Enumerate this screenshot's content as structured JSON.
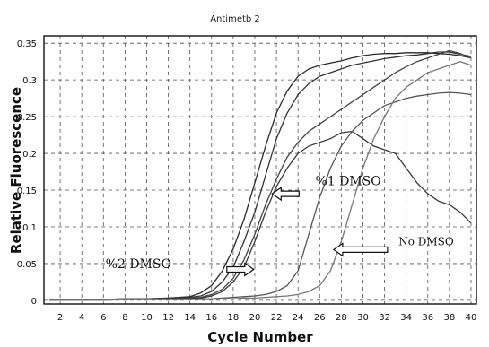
{
  "chart_data": {
    "type": "line",
    "title": "Antimetb 2",
    "xlabel": "Cycle Number",
    "ylabel": "Relative Fluorescence",
    "xlim": [
      0.5,
      40.5
    ],
    "ylim": [
      -0.005,
      0.36
    ],
    "x_ticks": [
      2,
      4,
      6,
      8,
      10,
      12,
      14,
      16,
      18,
      20,
      22,
      24,
      26,
      28,
      30,
      32,
      34,
      36,
      38,
      40
    ],
    "y_ticks": [
      0,
      0.05,
      0.1,
      0.15,
      0.2,
      0.25,
      0.3,
      0.35
    ],
    "y_tick_labels": [
      "0",
      "0.05",
      "0.1",
      "0.15",
      "0.2",
      "0.25",
      "0.3",
      "0.35"
    ],
    "grid": true,
    "x": [
      1,
      2,
      4,
      6,
      8,
      10,
      12,
      14,
      15,
      16,
      17,
      18,
      19,
      20,
      21,
      22,
      23,
      24,
      25,
      26,
      27,
      28,
      29,
      30,
      31,
      32,
      33,
      34,
      35,
      36,
      37,
      38,
      39,
      40
    ],
    "series": [
      {
        "color": "#2a2a2a",
        "values": [
          0.0,
          0.001,
          0.001,
          0.001,
          0.002,
          0.002,
          0.003,
          0.005,
          0.01,
          0.02,
          0.04,
          0.07,
          0.11,
          0.16,
          0.21,
          0.255,
          0.285,
          0.305,
          0.315,
          0.32,
          0.323,
          0.326,
          0.33,
          0.333,
          0.335,
          0.336,
          0.336,
          0.337,
          0.337,
          0.337,
          0.336,
          0.335,
          0.333,
          0.33
        ]
      },
      {
        "color": "#333333",
        "values": [
          0.0,
          0.001,
          0.001,
          0.001,
          0.002,
          0.002,
          0.003,
          0.004,
          0.006,
          0.012,
          0.025,
          0.045,
          0.08,
          0.12,
          0.17,
          0.22,
          0.255,
          0.28,
          0.295,
          0.305,
          0.31,
          0.315,
          0.32,
          0.323,
          0.326,
          0.329,
          0.331,
          0.333,
          0.334,
          0.336,
          0.338,
          0.338,
          0.335,
          0.332
        ]
      },
      {
        "color": "#444444",
        "values": [
          0.0,
          0.001,
          0.001,
          0.001,
          0.002,
          0.002,
          0.002,
          0.003,
          0.004,
          0.008,
          0.015,
          0.03,
          0.055,
          0.09,
          0.13,
          0.165,
          0.195,
          0.215,
          0.23,
          0.24,
          0.25,
          0.26,
          0.27,
          0.28,
          0.29,
          0.3,
          0.31,
          0.318,
          0.325,
          0.33,
          0.335,
          0.34,
          0.336,
          0.33
        ]
      },
      {
        "color": "#3a3a3a",
        "values": [
          0.0,
          0.001,
          0.001,
          0.001,
          0.001,
          0.002,
          0.002,
          0.002,
          0.003,
          0.006,
          0.012,
          0.025,
          0.045,
          0.08,
          0.12,
          0.155,
          0.18,
          0.2,
          0.21,
          0.215,
          0.22,
          0.228,
          0.23,
          0.22,
          0.21,
          0.205,
          0.2,
          0.18,
          0.16,
          0.145,
          0.135,
          0.13,
          0.12,
          0.105
        ]
      },
      {
        "color": "#555555",
        "values": [
          0.0,
          0.001,
          0.001,
          0.001,
          0.001,
          0.001,
          0.001,
          0.001,
          0.002,
          0.002,
          0.003,
          0.004,
          0.005,
          0.006,
          0.008,
          0.012,
          0.02,
          0.04,
          0.09,
          0.14,
          0.18,
          0.21,
          0.23,
          0.245,
          0.255,
          0.265,
          0.27,
          0.275,
          0.278,
          0.28,
          0.282,
          0.283,
          0.282,
          0.28
        ]
      },
      {
        "color": "#777777",
        "values": [
          0.0,
          0.0,
          0.0,
          0.0,
          0.001,
          0.001,
          0.001,
          0.001,
          0.001,
          0.001,
          0.002,
          0.002,
          0.003,
          0.003,
          0.004,
          0.005,
          0.006,
          0.008,
          0.012,
          0.02,
          0.04,
          0.08,
          0.13,
          0.18,
          0.22,
          0.25,
          0.275,
          0.29,
          0.3,
          0.31,
          0.315,
          0.32,
          0.325,
          0.32
        ]
      }
    ],
    "annotations": [
      {
        "text": "%1 DMSO",
        "x": 25.6,
        "y": 0.157,
        "arrow_tip": [
          21.6,
          0.145
        ]
      },
      {
        "text": "%2 DMSO",
        "x": 6.2,
        "y": 0.044,
        "arrow_tip": [
          19.9,
          0.042
        ]
      },
      {
        "text": "No DMSO",
        "x": 33.3,
        "y": 0.075,
        "arrow_tip": [
          27.3,
          0.069
        ]
      }
    ]
  }
}
